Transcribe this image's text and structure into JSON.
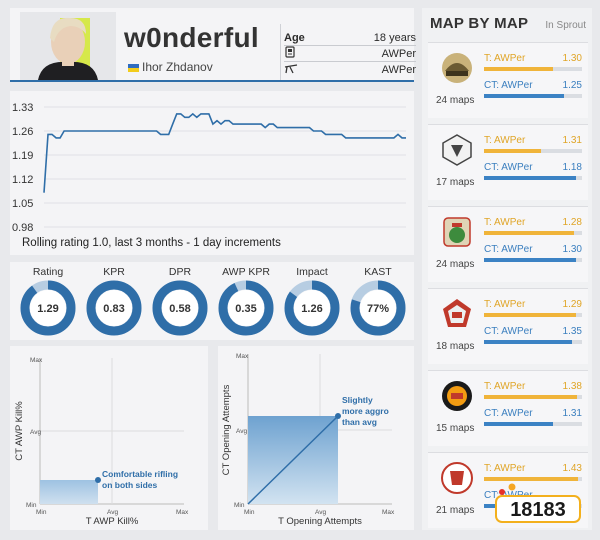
{
  "player": {
    "nickname": "w0nderful",
    "real_name": "Ihor Zhdanov",
    "age_label": "Age",
    "age": "18 years",
    "team_role": "AWPer",
    "weapon_role": "AWPer"
  },
  "rating_chart": {
    "caption": "Rolling rating 1.0, last 3 months - 1 day increments",
    "y_ticks": [
      "1.33",
      "1.26",
      "1.19",
      "1.12",
      "1.05",
      "0.98"
    ]
  },
  "chart_data": {
    "type": "line",
    "title": "",
    "xlabel": "",
    "ylabel": "",
    "ylim": [
      0.98,
      1.33
    ],
    "grid": true,
    "x": [
      0,
      1,
      2,
      3,
      4,
      5,
      6,
      7,
      8,
      9,
      10,
      11,
      12,
      13,
      14,
      15,
      16,
      17,
      18,
      19,
      20,
      21,
      22,
      23,
      24,
      25,
      26,
      27,
      28,
      29,
      30,
      31,
      32,
      33,
      34,
      35,
      36,
      37,
      38,
      39,
      40,
      41,
      42,
      43,
      44,
      45,
      46,
      47,
      48,
      49,
      50,
      51,
      52,
      53,
      54,
      55,
      56,
      57,
      58,
      59,
      60,
      61,
      62,
      63,
      64,
      65,
      66,
      67,
      68,
      69,
      70,
      71,
      72,
      73,
      74,
      75,
      76,
      77,
      78,
      79,
      80,
      81,
      82,
      83,
      84,
      85,
      86,
      87,
      88,
      89,
      90
    ],
    "series": [
      {
        "values": [
          1.08,
          1.25,
          1.25,
          1.24,
          1.24,
          1.26,
          1.26,
          1.26,
          1.26,
          1.26,
          1.26,
          1.26,
          1.26,
          1.26,
          1.26,
          1.26,
          1.26,
          1.26,
          1.26,
          1.26,
          1.26,
          1.26,
          1.26,
          1.26,
          1.26,
          1.26,
          1.26,
          1.26,
          1.26,
          1.25,
          1.25,
          1.25,
          1.28,
          1.31,
          1.31,
          1.3,
          1.3,
          1.31,
          1.3,
          1.31,
          1.31,
          1.31,
          1.28,
          1.29,
          1.28,
          1.29,
          1.29,
          1.28,
          1.28,
          1.28,
          1.28,
          1.28,
          1.28,
          1.28,
          1.28,
          1.27,
          1.28,
          1.28,
          1.27,
          1.27,
          1.27,
          1.27,
          1.27,
          1.27,
          1.27,
          1.27,
          1.27,
          1.26,
          1.26,
          1.26,
          1.25,
          1.25,
          1.25,
          1.25,
          1.25,
          1.24,
          1.24,
          1.24,
          1.24,
          1.24,
          1.24,
          1.24,
          1.24,
          1.24,
          1.24,
          1.24,
          1.24,
          1.24,
          1.25,
          1.24,
          1.24
        ]
      }
    ]
  },
  "stats": [
    {
      "label": "Rating",
      "value": "1.29",
      "fill": 0.9
    },
    {
      "label": "KPR",
      "value": "0.83",
      "fill": 1.0
    },
    {
      "label": "DPR",
      "value": "0.58",
      "fill": 1.0
    },
    {
      "label": "AWP KPR",
      "value": "0.35",
      "fill": 0.93
    },
    {
      "label": "Impact",
      "value": "1.26",
      "fill": 0.85
    },
    {
      "label": "KAST",
      "value": "77%",
      "fill": 0.8
    }
  ],
  "scatter_a": {
    "y_label": "CT AWP Kill%",
    "x_label": "T AWP Kill%",
    "annotation_1": "Comfortable rifling",
    "annotation_2": "on both sides",
    "tick_max": "Max",
    "tick_avg": "Avg",
    "tick_min": "Min"
  },
  "scatter_b": {
    "y_label": "CT Opening Attempts",
    "x_label": "T Opening Attempts",
    "annotation_1": "Slightly",
    "annotation_2": "more aggro",
    "annotation_3": "than avg",
    "tick_max": "Max",
    "tick_avg": "Avg",
    "tick_min": "Min"
  },
  "maps_panel": {
    "title": "MAP BY MAP",
    "subtitle": "In Sprout",
    "maps": [
      {
        "count": "24 maps",
        "t_label": "T: AWPer",
        "t_value": "1.30",
        "t_fill": 0.7,
        "ct_label": "CT: AWPer",
        "ct_value": "1.25",
        "ct_fill": 0.82
      },
      {
        "count": "17 maps",
        "t_label": "T: AWPer",
        "t_value": "1.31",
        "t_fill": 0.58,
        "ct_label": "CT: AWPer",
        "ct_value": "1.18",
        "ct_fill": 0.94
      },
      {
        "count": "24 maps",
        "t_label": "T: AWPer",
        "t_value": "1.28",
        "t_fill": 0.92,
        "ct_label": "CT: AWPer",
        "ct_value": "1.30",
        "ct_fill": 0.94
      },
      {
        "count": "18 maps",
        "t_label": "T: AWPer",
        "t_value": "1.29",
        "t_fill": 0.94,
        "ct_label": "CT: AWPer",
        "ct_value": "1.35",
        "ct_fill": 0.9
      },
      {
        "count": "15 maps",
        "t_label": "T: AWPer",
        "t_value": "1.38",
        "t_fill": 0.95,
        "ct_label": "CT: AWPer",
        "ct_value": "1.31",
        "ct_fill": 0.7
      },
      {
        "count": "21 maps",
        "t_label": "T: AWPer",
        "t_value": "1.43",
        "t_fill": 0.96,
        "ct_label": "CT: AWPer",
        "ct_value": "",
        "ct_fill": 0.6
      }
    ]
  },
  "colors": {
    "accent": "#2f6ea8",
    "t_side": "#f0b43a",
    "ct_side": "#3b82c4"
  },
  "watermark": "18183"
}
